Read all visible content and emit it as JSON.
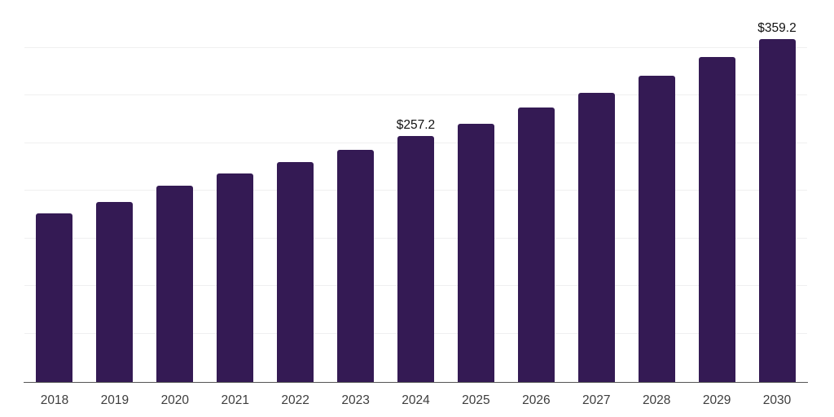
{
  "chart_data": {
    "type": "bar",
    "categories": [
      "2018",
      "2019",
      "2020",
      "2021",
      "2022",
      "2023",
      "2024",
      "2025",
      "2026",
      "2027",
      "2028",
      "2029",
      "2030"
    ],
    "values": [
      176,
      188,
      205,
      218,
      230,
      243,
      257.2,
      270,
      287,
      303,
      321,
      340,
      359.2
    ],
    "data_labels": [
      null,
      null,
      null,
      null,
      null,
      null,
      "$257.2",
      null,
      null,
      null,
      null,
      null,
      "$359.2"
    ],
    "title": "",
    "xlabel": "",
    "ylabel": "",
    "ylim": [
      0,
      400
    ],
    "gridline_interval": 50,
    "grid_visible": true,
    "y_tick_labels_visible": false,
    "legend_position": "none",
    "colors": {
      "bar": "#341a54",
      "gridline": "#efeff0",
      "axis_line": "#555555",
      "tick_label": "#3d3d3d",
      "data_label": "#111111",
      "background": "#ffffff"
    }
  }
}
